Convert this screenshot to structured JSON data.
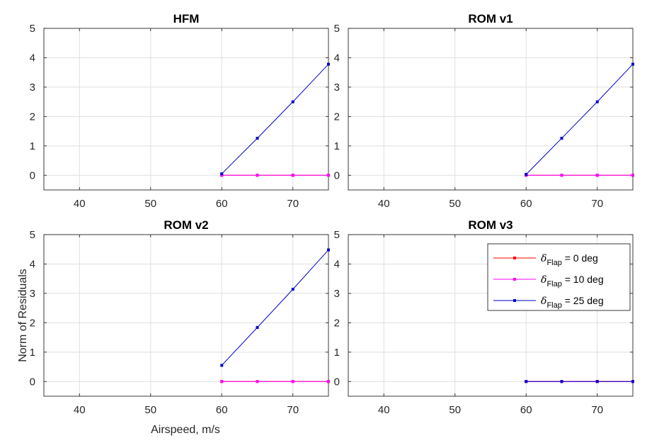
{
  "figure": {
    "ylabel": "Norm of Residuals",
    "xlabel": "Airspeed, m/s"
  },
  "chart_data": [
    {
      "type": "line",
      "title": "HFM",
      "xlim": [
        35,
        75
      ],
      "ylim": [
        -0.5,
        5
      ],
      "xticks": [
        40,
        50,
        60,
        70
      ],
      "yticks": [
        0,
        1,
        2,
        3,
        4,
        5
      ],
      "grid": true,
      "series": [
        {
          "name": "δ_Flap = 0 deg",
          "color": "#ff0000",
          "x": [
            60,
            65,
            70,
            75
          ],
          "y": [
            0,
            0,
            0,
            0
          ]
        },
        {
          "name": "δ_Flap = 10 deg",
          "color": "#ff00ff",
          "x": [
            60,
            65,
            70,
            75
          ],
          "y": [
            0,
            0,
            0,
            0
          ]
        },
        {
          "name": "δ_Flap = 25 deg",
          "color": "#0000cc",
          "x": [
            60,
            65,
            70,
            75
          ],
          "y": [
            0.05,
            1.26,
            2.5,
            3.78
          ]
        }
      ]
    },
    {
      "type": "line",
      "title": "ROM v1",
      "xlim": [
        35,
        75
      ],
      "ylim": [
        -0.5,
        5
      ],
      "xticks": [
        40,
        50,
        60,
        70
      ],
      "yticks": [
        0,
        1,
        2,
        3,
        4,
        5
      ],
      "grid": true,
      "series": [
        {
          "name": "δ_Flap = 0 deg",
          "color": "#ff0000",
          "x": [
            60,
            65,
            70,
            75
          ],
          "y": [
            0,
            0,
            0,
            0
          ]
        },
        {
          "name": "δ_Flap = 10 deg",
          "color": "#ff00ff",
          "x": [
            60,
            65,
            70,
            75
          ],
          "y": [
            0,
            0,
            0,
            0
          ]
        },
        {
          "name": "δ_Flap = 25 deg",
          "color": "#0000cc",
          "x": [
            60,
            65,
            70,
            75
          ],
          "y": [
            0.03,
            1.26,
            2.5,
            3.78
          ]
        }
      ]
    },
    {
      "type": "line",
      "title": "ROM v2",
      "xlim": [
        35,
        75
      ],
      "ylim": [
        -0.5,
        5
      ],
      "xticks": [
        40,
        50,
        60,
        70
      ],
      "yticks": [
        0,
        1,
        2,
        3,
        4,
        5
      ],
      "grid": true,
      "series": [
        {
          "name": "δ_Flap = 0 deg",
          "color": "#ff0000",
          "x": [
            60,
            65,
            70,
            75
          ],
          "y": [
            0,
            0,
            0,
            0
          ]
        },
        {
          "name": "δ_Flap = 10 deg",
          "color": "#ff00ff",
          "x": [
            60,
            65,
            70,
            75
          ],
          "y": [
            0,
            0,
            0,
            0
          ]
        },
        {
          "name": "δ_Flap = 25 deg",
          "color": "#0000cc",
          "x": [
            60,
            65,
            70,
            75
          ],
          "y": [
            0.55,
            1.84,
            3.14,
            4.48
          ]
        }
      ]
    },
    {
      "type": "line",
      "title": "ROM v3",
      "xlim": [
        35,
        75
      ],
      "ylim": [
        -0.5,
        5
      ],
      "xticks": [
        40,
        50,
        60,
        70
      ],
      "yticks": [
        0,
        1,
        2,
        3,
        4,
        5
      ],
      "grid": true,
      "legend": "top-right",
      "series": [
        {
          "name": "δ_Flap = 0 deg",
          "color": "#ff0000",
          "x": [
            60,
            65,
            70,
            75
          ],
          "y": [
            0,
            0,
            0,
            0
          ]
        },
        {
          "name": "δ_Flap = 10 deg",
          "color": "#ff00ff",
          "x": [
            60,
            65,
            70,
            75
          ],
          "y": [
            0,
            0,
            0,
            0
          ]
        },
        {
          "name": "δ_Flap = 25 deg",
          "color": "#0000cc",
          "x": [
            60,
            65,
            70,
            75
          ],
          "y": [
            0,
            0,
            0,
            0
          ]
        }
      ]
    }
  ],
  "legend": {
    "items": [
      {
        "symbol": "δ",
        "sub": "Flap",
        "suffix": " = 0 deg",
        "color": "#ff0000"
      },
      {
        "symbol": "δ",
        "sub": "Flap",
        "suffix": " = 10 deg",
        "color": "#ff00ff"
      },
      {
        "symbol": "δ",
        "sub": "Flap",
        "suffix": " = 25 deg",
        "color": "#0000cc"
      }
    ]
  }
}
